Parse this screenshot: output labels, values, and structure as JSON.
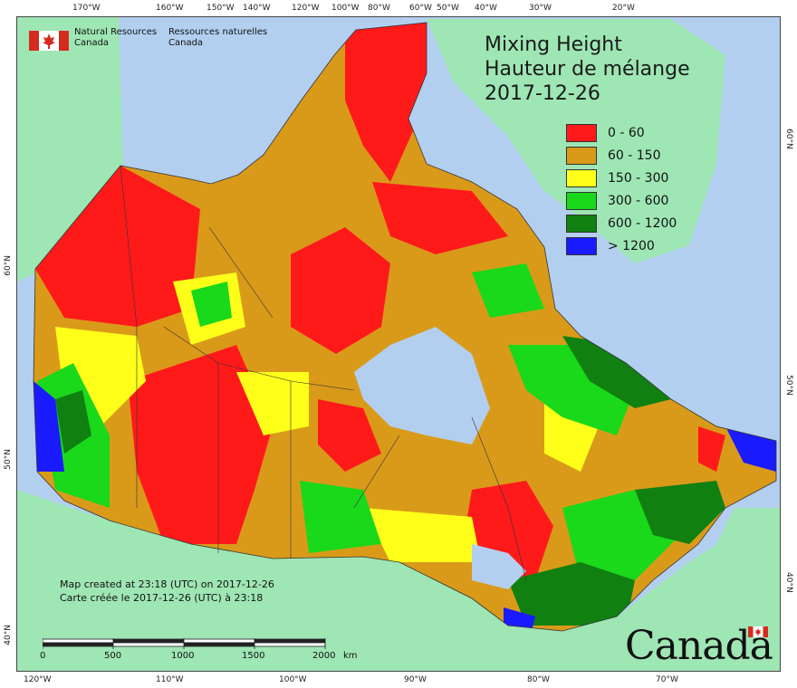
{
  "header": {
    "agency_en": "Natural Resources",
    "agency_en_2": "Canada",
    "agency_fr": "Ressources naturelles",
    "agency_fr_2": "Canada"
  },
  "title": {
    "en": "Mixing Height",
    "fr": "Hauteur de mélange",
    "date": "2017-12-26"
  },
  "legend": [
    {
      "label": "0 - 60",
      "color": "#ff1a1a"
    },
    {
      "label": "60 - 150",
      "color": "#d99a1a"
    },
    {
      "label": "150 - 300",
      "color": "#ffff1a"
    },
    {
      "label": "300 - 600",
      "color": "#1ad81a"
    },
    {
      "label": "600 - 1200",
      "color": "#108010"
    },
    {
      "label": "> 1200",
      "color": "#1a1aff"
    }
  ],
  "credit": {
    "en": "Map created at 23:18 (UTC) on 2017-12-26",
    "fr": "Carte créée le 2017-12-26 (UTC) à 23:18"
  },
  "scale": {
    "ticks": [
      "0",
      "500",
      "1000",
      "1500",
      "2000"
    ],
    "unit": "km"
  },
  "axes": {
    "top": [
      "170°W",
      "160°W",
      "150°W",
      "140°W",
      "120°W",
      "100°W",
      "80°W",
      "60°W",
      "50°W",
      "40°W",
      "30°W",
      "20°W"
    ],
    "bottom": [
      "120°W",
      "110°W",
      "100°W",
      "90°W",
      "80°W",
      "70°W"
    ],
    "left": [
      "60°N",
      "50°N",
      "40°N"
    ],
    "right": [
      "60°N",
      "50°N",
      "40°N"
    ]
  },
  "wordmark": "Canada",
  "colors": {
    "ocean": "#b3cff0",
    "land_outside": "#9ee6b4",
    "red": "#ff1a1a",
    "orange": "#d99a1a",
    "yellow": "#ffff1a",
    "green": "#1ad81a",
    "dark_green": "#108010",
    "blue": "#1a1aff"
  }
}
